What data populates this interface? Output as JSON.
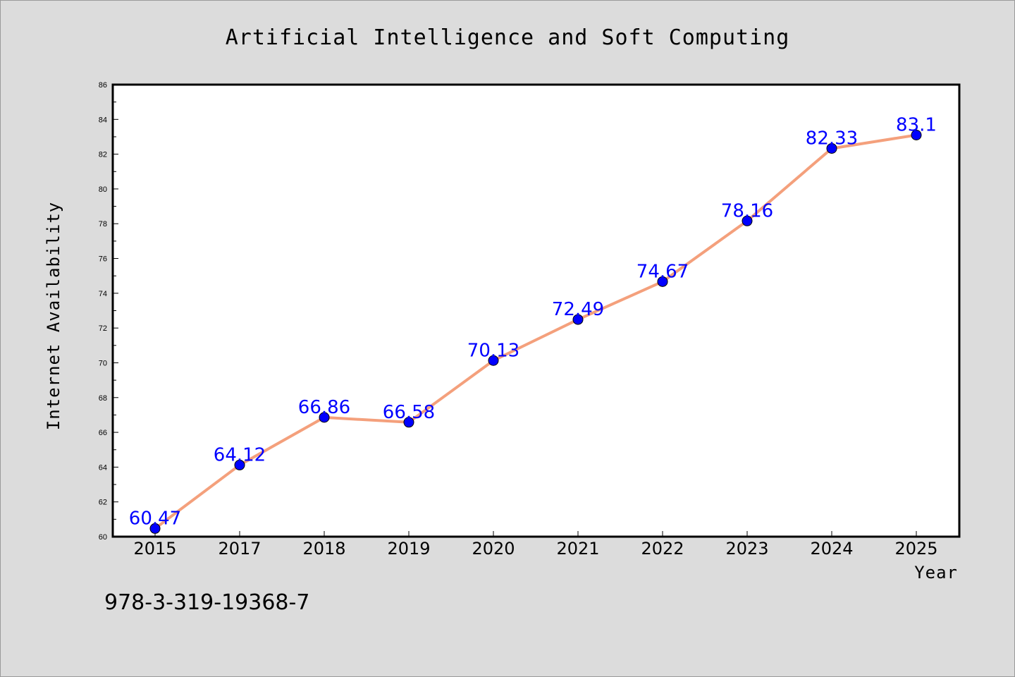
{
  "chart_data": {
    "type": "line",
    "title": "Artificial Intelligence and Soft Computing",
    "xlabel": "Year",
    "ylabel": "Internet Availability",
    "categories": [
      "2015",
      "2017",
      "2018",
      "2019",
      "2020",
      "2021",
      "2022",
      "2023",
      "2024",
      "2025"
    ],
    "values": [
      60.47,
      64.12,
      66.86,
      66.58,
      70.13,
      72.49,
      74.67,
      78.16,
      82.33,
      83.1
    ],
    "data_labels": [
      "60.47",
      "64.12",
      "66.86",
      "66.58",
      "70.13",
      "72.49",
      "74.67",
      "78.16",
      "82.33",
      "83.1"
    ],
    "ylim": [
      60,
      86
    ],
    "yticks": [
      "60",
      "62",
      "64",
      "66",
      "68",
      "70",
      "72",
      "74",
      "76",
      "78",
      "80",
      "82",
      "84",
      "86"
    ],
    "grid": false,
    "line_color": "#f4a07c",
    "marker_color": "#0000ff",
    "label_color": "#0000ff"
  },
  "footer": {
    "isbn": "978-3-319-19368-7"
  }
}
